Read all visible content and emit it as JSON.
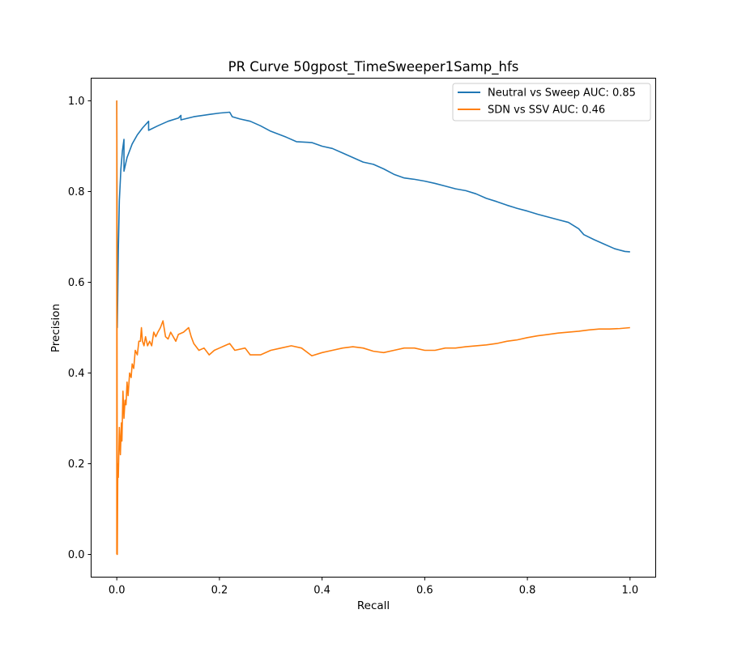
{
  "chart_data": {
    "type": "line",
    "title": "PR Curve 50gpost_TimeSweeper1Samp_hfs",
    "xlabel": "Recall",
    "ylabel": "Precision",
    "xlim": [
      -0.05,
      1.05
    ],
    "ylim": [
      -0.05,
      1.05
    ],
    "xticks": [
      0.0,
      0.2,
      0.4,
      0.6,
      0.8,
      1.0
    ],
    "yticks": [
      0.0,
      0.2,
      0.4,
      0.6,
      0.8,
      1.0
    ],
    "xtick_labels": [
      "0.0",
      "0.2",
      "0.4",
      "0.6",
      "0.8",
      "1.0"
    ],
    "ytick_labels": [
      "0.0",
      "0.2",
      "0.4",
      "0.6",
      "0.8",
      "1.0"
    ],
    "grid": false,
    "legend_position": "top-right",
    "series": [
      {
        "name": "Neutral vs Sweep AUC: 0.85",
        "color": "#1f77b4",
        "points": [
          [
            0.0,
            1.0
          ],
          [
            0.001,
            0.5
          ],
          [
            0.003,
            0.67
          ],
          [
            0.005,
            0.78
          ],
          [
            0.008,
            0.85
          ],
          [
            0.011,
            0.89
          ],
          [
            0.014,
            0.915
          ],
          [
            0.014,
            0.845
          ],
          [
            0.02,
            0.875
          ],
          [
            0.03,
            0.905
          ],
          [
            0.04,
            0.925
          ],
          [
            0.05,
            0.94
          ],
          [
            0.062,
            0.955
          ],
          [
            0.062,
            0.935
          ],
          [
            0.08,
            0.945
          ],
          [
            0.1,
            0.955
          ],
          [
            0.12,
            0.962
          ],
          [
            0.125,
            0.968
          ],
          [
            0.125,
            0.958
          ],
          [
            0.15,
            0.965
          ],
          [
            0.18,
            0.97
          ],
          [
            0.2,
            0.973
          ],
          [
            0.22,
            0.975
          ],
          [
            0.225,
            0.965
          ],
          [
            0.24,
            0.96
          ],
          [
            0.26,
            0.955
          ],
          [
            0.28,
            0.945
          ],
          [
            0.3,
            0.933
          ],
          [
            0.33,
            0.92
          ],
          [
            0.35,
            0.91
          ],
          [
            0.38,
            0.908
          ],
          [
            0.4,
            0.9
          ],
          [
            0.42,
            0.895
          ],
          [
            0.44,
            0.885
          ],
          [
            0.46,
            0.875
          ],
          [
            0.48,
            0.865
          ],
          [
            0.5,
            0.86
          ],
          [
            0.52,
            0.85
          ],
          [
            0.54,
            0.838
          ],
          [
            0.56,
            0.83
          ],
          [
            0.58,
            0.827
          ],
          [
            0.6,
            0.823
          ],
          [
            0.62,
            0.818
          ],
          [
            0.64,
            0.812
          ],
          [
            0.66,
            0.806
          ],
          [
            0.68,
            0.802
          ],
          [
            0.7,
            0.795
          ],
          [
            0.72,
            0.785
          ],
          [
            0.74,
            0.778
          ],
          [
            0.76,
            0.77
          ],
          [
            0.78,
            0.763
          ],
          [
            0.8,
            0.757
          ],
          [
            0.82,
            0.75
          ],
          [
            0.84,
            0.744
          ],
          [
            0.86,
            0.738
          ],
          [
            0.88,
            0.732
          ],
          [
            0.9,
            0.718
          ],
          [
            0.91,
            0.705
          ],
          [
            0.93,
            0.694
          ],
          [
            0.95,
            0.684
          ],
          [
            0.97,
            0.674
          ],
          [
            0.99,
            0.668
          ],
          [
            1.0,
            0.667
          ]
        ]
      },
      {
        "name": "SDN vs SSV AUC: 0.46",
        "color": "#ff7f0e",
        "points": [
          [
            0.0,
            0.0
          ],
          [
            0.0,
            1.0
          ],
          [
            0.001,
            0.0
          ],
          [
            0.002,
            0.2
          ],
          [
            0.003,
            0.17
          ],
          [
            0.005,
            0.28
          ],
          [
            0.007,
            0.22
          ],
          [
            0.009,
            0.29
          ],
          [
            0.01,
            0.25
          ],
          [
            0.012,
            0.36
          ],
          [
            0.014,
            0.3
          ],
          [
            0.016,
            0.34
          ],
          [
            0.018,
            0.33
          ],
          [
            0.02,
            0.38
          ],
          [
            0.022,
            0.35
          ],
          [
            0.025,
            0.4
          ],
          [
            0.028,
            0.39
          ],
          [
            0.03,
            0.42
          ],
          [
            0.033,
            0.41
          ],
          [
            0.036,
            0.45
          ],
          [
            0.04,
            0.44
          ],
          [
            0.043,
            0.47
          ],
          [
            0.046,
            0.47
          ],
          [
            0.048,
            0.5
          ],
          [
            0.05,
            0.47
          ],
          [
            0.053,
            0.46
          ],
          [
            0.056,
            0.48
          ],
          [
            0.06,
            0.46
          ],
          [
            0.064,
            0.47
          ],
          [
            0.068,
            0.46
          ],
          [
            0.072,
            0.49
          ],
          [
            0.076,
            0.48
          ],
          [
            0.08,
            0.49
          ],
          [
            0.085,
            0.5
          ],
          [
            0.09,
            0.515
          ],
          [
            0.095,
            0.48
          ],
          [
            0.1,
            0.475
          ],
          [
            0.105,
            0.49
          ],
          [
            0.11,
            0.48
          ],
          [
            0.115,
            0.47
          ],
          [
            0.12,
            0.485
          ],
          [
            0.13,
            0.49
          ],
          [
            0.14,
            0.5
          ],
          [
            0.145,
            0.48
          ],
          [
            0.15,
            0.465
          ],
          [
            0.16,
            0.45
          ],
          [
            0.17,
            0.455
          ],
          [
            0.18,
            0.44
          ],
          [
            0.19,
            0.45
          ],
          [
            0.2,
            0.455
          ],
          [
            0.21,
            0.46
          ],
          [
            0.22,
            0.465
          ],
          [
            0.23,
            0.45
          ],
          [
            0.25,
            0.455
          ],
          [
            0.26,
            0.44
          ],
          [
            0.28,
            0.44
          ],
          [
            0.3,
            0.45
          ],
          [
            0.32,
            0.455
          ],
          [
            0.34,
            0.46
          ],
          [
            0.36,
            0.455
          ],
          [
            0.38,
            0.438
          ],
          [
            0.4,
            0.445
          ],
          [
            0.42,
            0.45
          ],
          [
            0.44,
            0.455
          ],
          [
            0.46,
            0.458
          ],
          [
            0.48,
            0.455
          ],
          [
            0.5,
            0.448
          ],
          [
            0.52,
            0.445
          ],
          [
            0.54,
            0.45
          ],
          [
            0.56,
            0.455
          ],
          [
            0.58,
            0.455
          ],
          [
            0.6,
            0.45
          ],
          [
            0.62,
            0.45
          ],
          [
            0.64,
            0.455
          ],
          [
            0.66,
            0.455
          ],
          [
            0.68,
            0.458
          ],
          [
            0.7,
            0.46
          ],
          [
            0.72,
            0.462
          ],
          [
            0.74,
            0.465
          ],
          [
            0.76,
            0.47
          ],
          [
            0.78,
            0.473
          ],
          [
            0.8,
            0.478
          ],
          [
            0.82,
            0.482
          ],
          [
            0.84,
            0.485
          ],
          [
            0.86,
            0.488
          ],
          [
            0.88,
            0.49
          ],
          [
            0.9,
            0.492
          ],
          [
            0.92,
            0.495
          ],
          [
            0.94,
            0.497
          ],
          [
            0.96,
            0.497
          ],
          [
            0.98,
            0.498
          ],
          [
            1.0,
            0.5
          ]
        ]
      }
    ]
  }
}
